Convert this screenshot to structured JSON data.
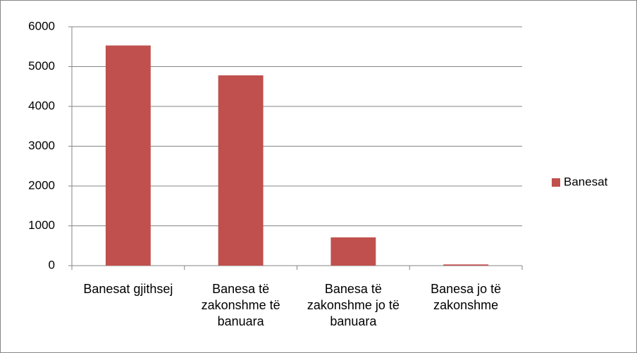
{
  "chart_data": {
    "type": "bar",
    "categories": [
      "Banesat gjithsej",
      "Banesa të zakonshme të banuara",
      "Banesa të zakonshme jo të banuara",
      "Banesa jo të zakonshme"
    ],
    "series": [
      {
        "name": "Banesat",
        "color": "#c0504d",
        "values": [
          5530,
          4780,
          710,
          30
        ]
      }
    ],
    "ylim": [
      0,
      6000
    ],
    "yticks": [
      0,
      1000,
      2000,
      3000,
      4000,
      5000,
      6000
    ],
    "grid": true,
    "legend": "right"
  }
}
